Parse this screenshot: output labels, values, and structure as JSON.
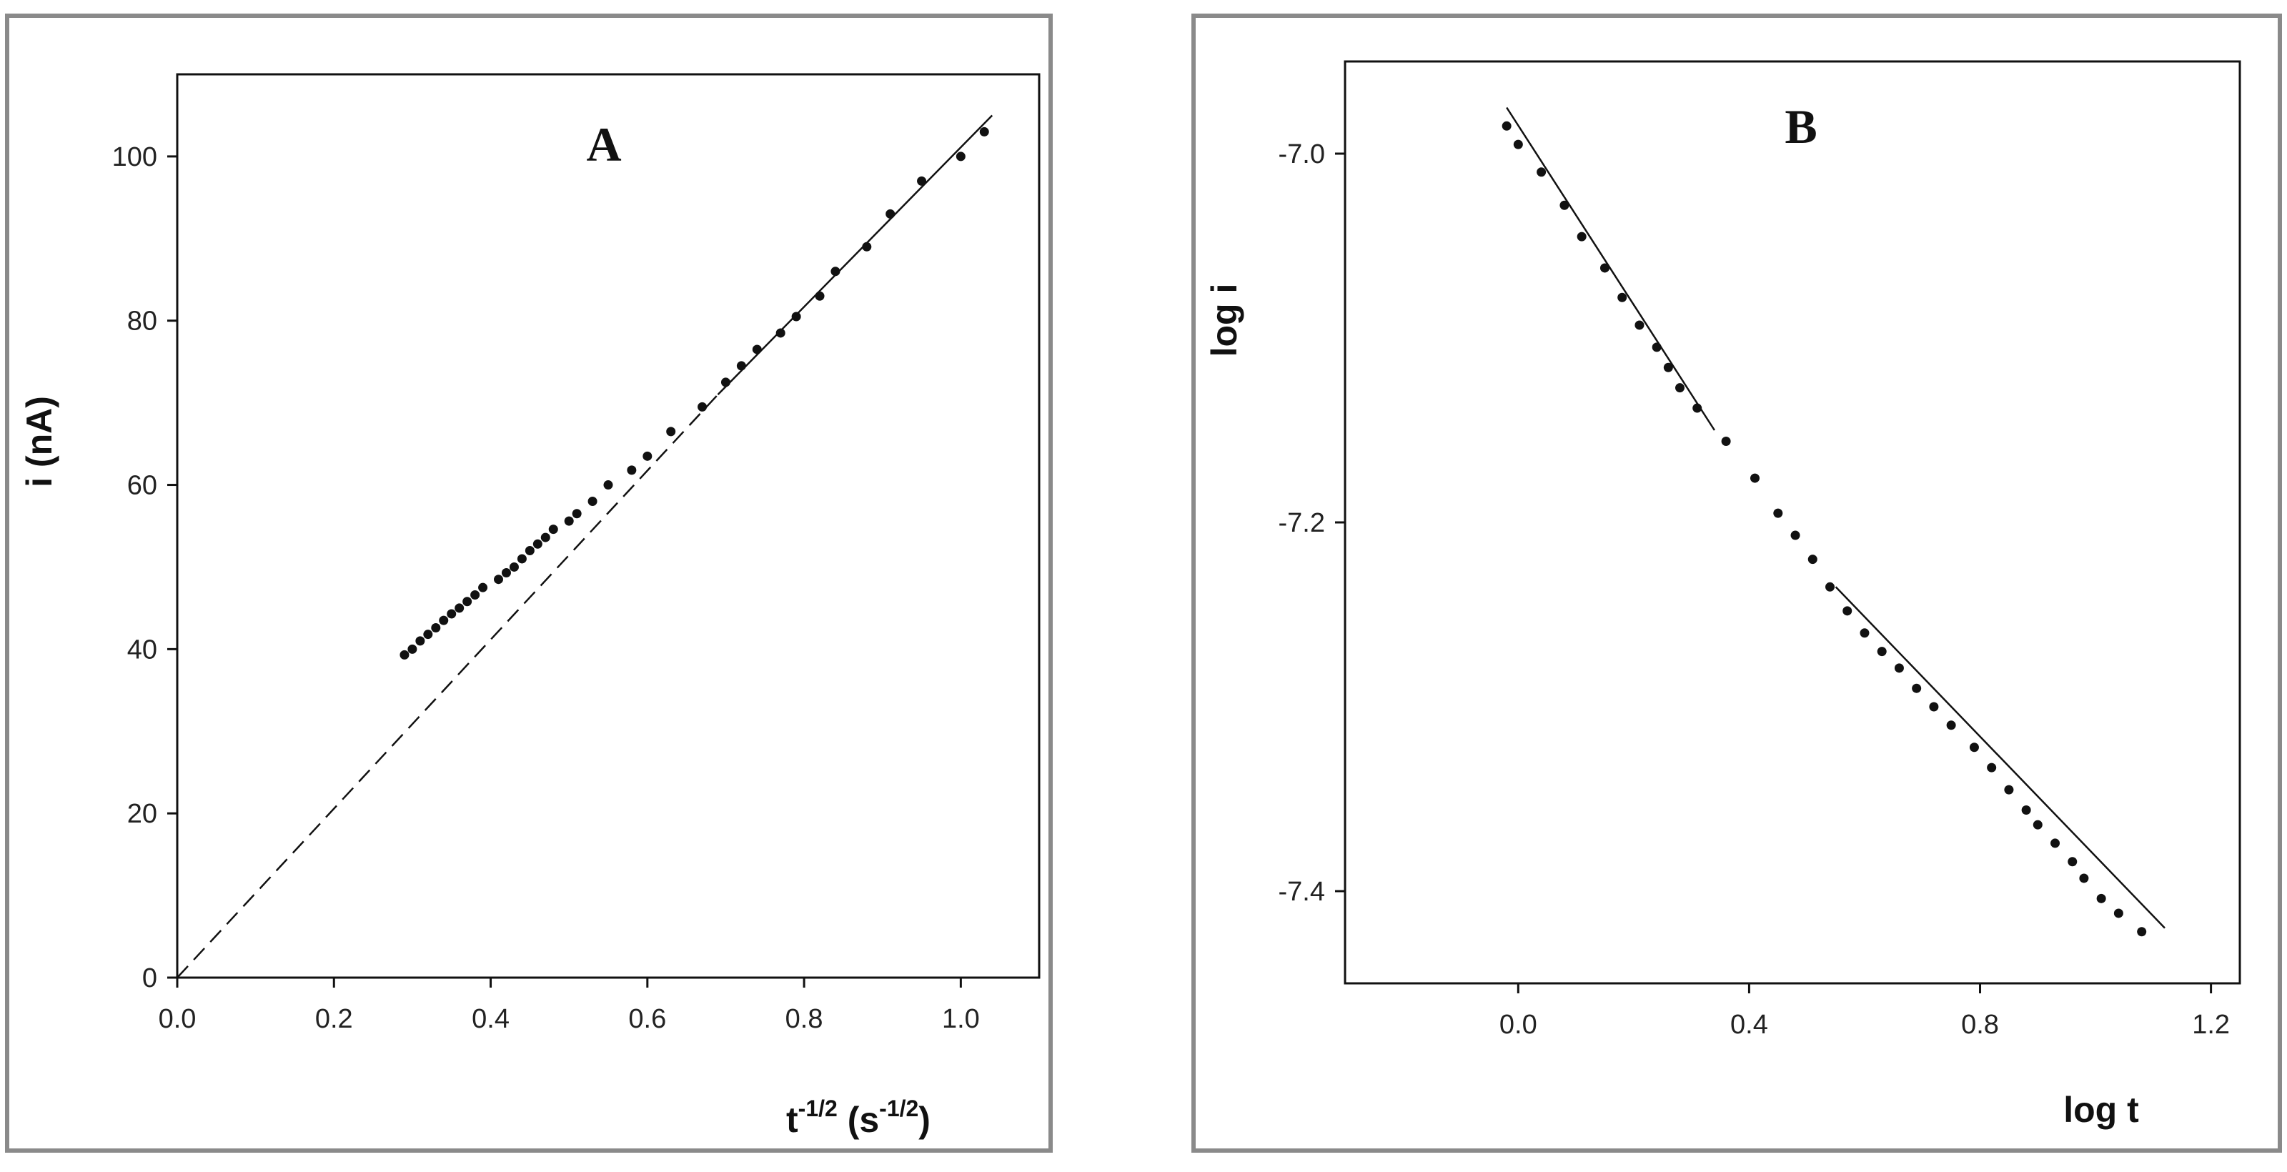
{
  "chart_data": [
    {
      "type": "scatter",
      "panel_label": "A",
      "xlabel": "t",
      "xlabel_sup1": "-1/2",
      "xlabel_mid": " (s",
      "xlabel_sup2": "-1/2",
      "xlabel_end": ")",
      "ylabel": "i (nA)",
      "xlim": [
        0.0,
        1.1
      ],
      "ylim": [
        0,
        110
      ],
      "xticks": [
        "0.0",
        "0.2",
        "0.4",
        "0.6",
        "0.8",
        "1.0"
      ],
      "yticks": [
        "0",
        "20",
        "40",
        "60",
        "80",
        "100"
      ],
      "grid": false,
      "series": [
        {
          "points": [
            [
              0.29,
              39.3
            ],
            [
              0.3,
              40.0
            ],
            [
              0.31,
              41.0
            ],
            [
              0.32,
              41.8
            ],
            [
              0.33,
              42.6
            ],
            [
              0.34,
              43.5
            ],
            [
              0.35,
              44.3
            ],
            [
              0.36,
              45.0
            ],
            [
              0.37,
              45.8
            ],
            [
              0.38,
              46.6
            ],
            [
              0.39,
              47.5
            ],
            [
              0.41,
              48.5
            ],
            [
              0.42,
              49.3
            ],
            [
              0.43,
              50.0
            ],
            [
              0.44,
              51.0
            ],
            [
              0.45,
              52.0
            ],
            [
              0.46,
              52.8
            ],
            [
              0.47,
              53.6
            ],
            [
              0.48,
              54.6
            ],
            [
              0.5,
              55.6
            ],
            [
              0.51,
              56.5
            ],
            [
              0.53,
              58.0
            ],
            [
              0.55,
              60.0
            ],
            [
              0.58,
              61.8
            ],
            [
              0.6,
              63.5
            ],
            [
              0.63,
              66.5
            ],
            [
              0.67,
              69.5
            ],
            [
              0.7,
              72.5
            ],
            [
              0.72,
              74.5
            ],
            [
              0.74,
              76.5
            ],
            [
              0.77,
              78.5
            ],
            [
              0.79,
              80.5
            ],
            [
              0.82,
              83.0
            ],
            [
              0.84,
              86.0
            ],
            [
              0.88,
              89.0
            ],
            [
              0.91,
              93.0
            ],
            [
              0.95,
              97.0
            ],
            [
              1.0,
              100.0
            ],
            [
              1.03,
              103.0
            ]
          ]
        }
      ],
      "fit_solid": [
        [
          0.69,
          71.0
        ],
        [
          1.04,
          105.0
        ]
      ],
      "fit_dashed": [
        [
          0.0,
          0.0
        ],
        [
          0.69,
          71.0
        ]
      ]
    },
    {
      "type": "scatter",
      "panel_label": "B",
      "xlabel": "log t",
      "ylabel": "log i",
      "xlim": [
        -0.3,
        1.25
      ],
      "ylim": [
        -7.45,
        -6.95
      ],
      "xticks": [
        "0.0",
        "0.4",
        "0.8",
        "1.2"
      ],
      "yticks": [
        "-7.0",
        "-7.2",
        "-7.4"
      ],
      "grid": false,
      "series": [
        {
          "points": [
            [
              -0.02,
              -6.985
            ],
            [
              0.0,
              -6.995
            ],
            [
              0.04,
              -7.01
            ],
            [
              0.08,
              -7.028
            ],
            [
              0.11,
              -7.045
            ],
            [
              0.15,
              -7.062
            ],
            [
              0.18,
              -7.078
            ],
            [
              0.21,
              -7.093
            ],
            [
              0.24,
              -7.105
            ],
            [
              0.26,
              -7.116
            ],
            [
              0.28,
              -7.127
            ],
            [
              0.31,
              -7.138
            ],
            [
              0.36,
              -7.156
            ],
            [
              0.41,
              -7.176
            ],
            [
              0.45,
              -7.195
            ],
            [
              0.48,
              -7.207
            ],
            [
              0.51,
              -7.22
            ],
            [
              0.54,
              -7.235
            ],
            [
              0.57,
              -7.248
            ],
            [
              0.6,
              -7.26
            ],
            [
              0.63,
              -7.27
            ],
            [
              0.66,
              -7.279
            ],
            [
              0.69,
              -7.29
            ],
            [
              0.72,
              -7.3
            ],
            [
              0.75,
              -7.31
            ],
            [
              0.79,
              -7.322
            ],
            [
              0.82,
              -7.333
            ],
            [
              0.85,
              -7.345
            ],
            [
              0.88,
              -7.356
            ],
            [
              0.9,
              -7.364
            ],
            [
              0.93,
              -7.374
            ],
            [
              0.96,
              -7.384
            ],
            [
              0.98,
              -7.393
            ],
            [
              1.01,
              -7.404
            ],
            [
              1.04,
              -7.412
            ],
            [
              1.08,
              -7.422
            ]
          ]
        }
      ],
      "fit_upper": [
        [
          -0.02,
          -6.975
        ],
        [
          0.34,
          -7.15
        ]
      ],
      "fit_lower": [
        [
          0.55,
          -7.235
        ],
        [
          1.12,
          -7.42
        ]
      ]
    }
  ]
}
